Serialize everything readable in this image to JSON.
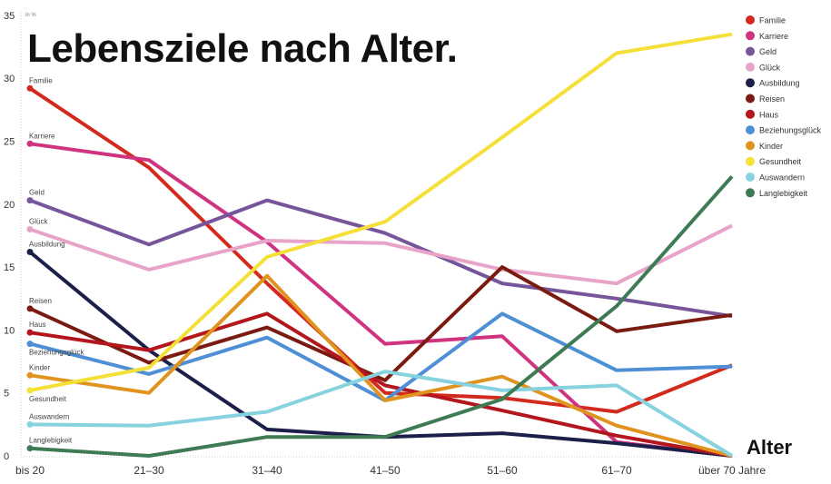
{
  "chart_data": {
    "type": "line",
    "title": "Lebensziele nach Alter.",
    "xlabel": "Alter",
    "ylabel": "in %",
    "ylim": [
      0,
      35
    ],
    "yticks": [
      0,
      5,
      10,
      15,
      20,
      25,
      30,
      35
    ],
    "grid": false,
    "legend_position": "top-right",
    "categories": [
      "bis 20",
      "21–30",
      "31–40",
      "41–50",
      "51–60",
      "61–70",
      "über 70 Jahre"
    ],
    "series": [
      {
        "name": "Familie",
        "color": "#d42a1e",
        "values": [
          29.2,
          22.9,
          13.7,
          5.0,
          4.6,
          3.5,
          7.2
        ]
      },
      {
        "name": "Karriere",
        "color": "#d0337f",
        "values": [
          24.8,
          23.5,
          17.0,
          8.9,
          9.5,
          1.1,
          0
        ]
      },
      {
        "name": "Geld",
        "color": "#76559b",
        "values": [
          20.3,
          16.8,
          20.3,
          17.7,
          13.7,
          12.5,
          11.1
        ]
      },
      {
        "name": "Glück",
        "color": "#e8a3c8",
        "values": [
          18.0,
          14.8,
          17.1,
          16.9,
          14.8,
          13.7,
          18.3
        ]
      },
      {
        "name": "Ausbildung",
        "color": "#1b1f4a",
        "values": [
          16.2,
          8.4,
          2.1,
          1.5,
          1.8,
          1.0,
          0
        ]
      },
      {
        "name": "Reisen",
        "color": "#7a1a10",
        "values": [
          11.7,
          7.4,
          10.2,
          6.0,
          15.0,
          9.9,
          11.2
        ]
      },
      {
        "name": "Haus",
        "color": "#b3161c",
        "values": [
          9.8,
          8.4,
          11.3,
          5.6,
          3.6,
          1.6,
          0
        ]
      },
      {
        "name": "Beziehungsglück",
        "color": "#4f8fd6",
        "values": [
          8.9,
          6.5,
          9.4,
          4.4,
          11.3,
          6.8,
          7.1
        ]
      },
      {
        "name": "Kinder",
        "color": "#e0931f",
        "values": [
          6.4,
          5.0,
          14.3,
          4.4,
          6.3,
          2.4,
          0
        ]
      },
      {
        "name": "Gesundheit",
        "color": "#f5e03a",
        "values": [
          5.2,
          7.0,
          15.8,
          18.6,
          25.3,
          32.0,
          33.5
        ]
      },
      {
        "name": "Auswandern",
        "color": "#86d2de",
        "values": [
          2.5,
          2.4,
          3.5,
          6.7,
          5.2,
          5.6,
          0
        ]
      },
      {
        "name": "Langlebigkeit",
        "color": "#3e7b55",
        "values": [
          0.6,
          0,
          1.5,
          1.5,
          4.5,
          11.9,
          22.2
        ]
      }
    ]
  }
}
